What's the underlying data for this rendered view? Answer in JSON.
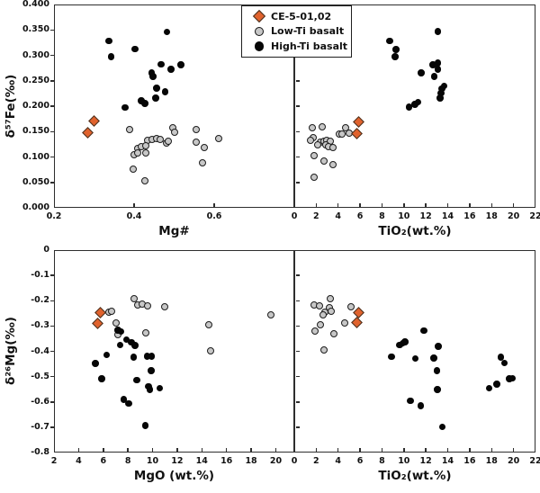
{
  "figure": {
    "legend": {
      "items": [
        {
          "key": "ce5",
          "label": "CE-5-01,02",
          "marker": "diamond"
        },
        {
          "key": "low_ti",
          "label": "Low-Ti basalt",
          "marker": "circle-gray"
        },
        {
          "key": "high_ti",
          "label": "High-Ti basalt",
          "marker": "circle-black"
        }
      ]
    },
    "colors": {
      "ce5_fill": "#e0622d",
      "ce5_stroke": "#45301f",
      "low_ti_fill": "#c7c7c7",
      "high_ti_fill": "#060606",
      "marker_outline": "#1c1c1c",
      "axis": "#2e2e2e",
      "background": "#ffffff"
    }
  },
  "chart_data": {
    "type": "scatter",
    "layout": "2x2 grid, shared y axis per row, legend top center",
    "panels": [
      {
        "id": "d57fe-vs-mgnum",
        "x": {
          "label": "Mg#",
          "min": 0.2,
          "max": 0.8,
          "ticks": [
            0.2,
            0.4,
            0.6
          ],
          "tick_labels": [
            "0.2",
            "0.4",
            "0.6"
          ]
        },
        "y": {
          "label": "δ⁵⁷Fe(‰)",
          "min": 0.0,
          "max": 0.4,
          "show_labels": true,
          "ticks": [
            0.0,
            0.05,
            0.1,
            0.15,
            0.2,
            0.25,
            0.3,
            0.35,
            0.4
          ],
          "tick_labels": [
            "0.000",
            "0.050",
            "0.100",
            "0.150",
            "0.200",
            "0.250",
            "0.300",
            "0.350",
            "0.400"
          ]
        },
        "series": {
          "ce5": [
            [
              0.297,
              0.172
            ],
            [
              0.282,
              0.149
            ]
          ],
          "low_ti": [
            [
              0.386,
              0.155
            ],
            [
              0.495,
              0.16
            ],
            [
              0.498,
              0.15
            ],
            [
              0.553,
              0.156
            ],
            [
              0.61,
              0.138
            ],
            [
              0.431,
              0.135
            ],
            [
              0.442,
              0.137
            ],
            [
              0.454,
              0.138
            ],
            [
              0.463,
              0.136
            ],
            [
              0.478,
              0.13
            ],
            [
              0.484,
              0.132
            ],
            [
              0.553,
              0.131
            ],
            [
              0.407,
              0.119
            ],
            [
              0.415,
              0.122
            ],
            [
              0.426,
              0.124
            ],
            [
              0.398,
              0.106
            ],
            [
              0.407,
              0.109
            ],
            [
              0.426,
              0.11
            ],
            [
              0.573,
              0.12
            ],
            [
              0.568,
              0.091
            ],
            [
              0.395,
              0.078
            ],
            [
              0.424,
              0.055
            ]
          ],
          "high_ti": [
            [
              0.48,
              0.348
            ],
            [
              0.335,
              0.33
            ],
            [
              0.4,
              0.314
            ],
            [
              0.34,
              0.299
            ],
            [
              0.465,
              0.284
            ],
            [
              0.515,
              0.283
            ],
            [
              0.49,
              0.274
            ],
            [
              0.442,
              0.267
            ],
            [
              0.445,
              0.26
            ],
            [
              0.454,
              0.237
            ],
            [
              0.475,
              0.23
            ],
            [
              0.452,
              0.218
            ],
            [
              0.416,
              0.212
            ],
            [
              0.425,
              0.207
            ],
            [
              0.375,
              0.199
            ]
          ]
        }
      },
      {
        "id": "d57fe-vs-tio2",
        "x": {
          "label": "TiO₂(wt.%)",
          "min": 0,
          "max": 22,
          "ticks": [
            0,
            2,
            4,
            6,
            8,
            10,
            12,
            14,
            16,
            18,
            20,
            22
          ],
          "tick_labels": [
            "0",
            "2",
            "4",
            "6",
            "8",
            "10",
            "12",
            "14",
            "16",
            "18",
            "20",
            "22"
          ]
        },
        "y": {
          "label": "",
          "min": 0.0,
          "max": 0.4,
          "show_labels": false,
          "ticks": [
            0.0,
            0.05,
            0.1,
            0.15,
            0.2,
            0.25,
            0.3,
            0.35,
            0.4
          ],
          "tick_labels": []
        },
        "series": {
          "ce5": [
            [
              5.8,
              0.171
            ],
            [
              5.6,
              0.148
            ]
          ],
          "low_ti": [
            [
              1.54,
              0.159
            ],
            [
              2.5,
              0.161
            ],
            [
              4.6,
              0.159
            ],
            [
              4.93,
              0.148
            ],
            [
              4.0,
              0.147
            ],
            [
              4.27,
              0.147
            ],
            [
              1.64,
              0.139
            ],
            [
              1.37,
              0.135
            ],
            [
              2.28,
              0.131
            ],
            [
              2.63,
              0.133
            ],
            [
              2.91,
              0.134
            ],
            [
              3.18,
              0.133
            ],
            [
              2.09,
              0.125
            ],
            [
              2.83,
              0.125
            ],
            [
              3.02,
              0.123
            ],
            [
              3.45,
              0.121
            ],
            [
              1.73,
              0.104
            ],
            [
              2.63,
              0.094
            ],
            [
              3.45,
              0.086
            ],
            [
              1.73,
              0.062
            ]
          ],
          "high_ti": [
            [
              13.0,
              0.349
            ],
            [
              8.6,
              0.33
            ],
            [
              9.2,
              0.313
            ],
            [
              9.1,
              0.299
            ],
            [
              13.0,
              0.287
            ],
            [
              12.55,
              0.283
            ],
            [
              13.0,
              0.274
            ],
            [
              11.5,
              0.267
            ],
            [
              12.7,
              0.26
            ],
            [
              13.6,
              0.242
            ],
            [
              13.4,
              0.236
            ],
            [
              13.3,
              0.227
            ],
            [
              13.2,
              0.218
            ],
            [
              11.2,
              0.21
            ],
            [
              10.9,
              0.205
            ],
            [
              10.4,
              0.2
            ]
          ]
        }
      },
      {
        "id": "d26mg-vs-mgo",
        "x": {
          "label": "MgO (wt.%)",
          "min": 2,
          "max": 21.5,
          "ticks": [
            2,
            4,
            6,
            8,
            10,
            12,
            14,
            16,
            18,
            20
          ],
          "tick_labels": [
            "2",
            "4",
            "6",
            "8",
            "10",
            "12",
            "14",
            "16",
            "18",
            "20"
          ]
        },
        "y": {
          "label": "δ²⁶Mg(‰)",
          "min": -0.8,
          "max": 0.0,
          "show_labels": true,
          "ticks": [
            0.0,
            -0.1,
            -0.2,
            -0.3,
            -0.4,
            -0.5,
            -0.6,
            -0.7,
            -0.8
          ],
          "tick_labels": [
            "0",
            "-0.1",
            "-0.2",
            "-0.3",
            "-0.4",
            "-0.5",
            "-0.6",
            "-0.7",
            "-0.8"
          ]
        },
        "series": {
          "ce5": [
            [
              5.7,
              -0.244
            ],
            [
              5.5,
              -0.285
            ]
          ],
          "low_ti": [
            [
              8.4,
              -0.19
            ],
            [
              8.75,
              -0.214
            ],
            [
              9.1,
              -0.208
            ],
            [
              9.5,
              -0.216
            ],
            [
              10.9,
              -0.221
            ],
            [
              6.35,
              -0.241
            ],
            [
              6.6,
              -0.238
            ],
            [
              6.97,
              -0.283
            ],
            [
              7.1,
              -0.33
            ],
            [
              9.35,
              -0.322
            ],
            [
              14.5,
              -0.291
            ],
            [
              14.6,
              -0.396
            ],
            [
              19.5,
              -0.253
            ]
          ],
          "high_ti": [
            [
              7.1,
              -0.312
            ],
            [
              7.35,
              -0.319
            ],
            [
              7.8,
              -0.351
            ],
            [
              7.3,
              -0.372
            ],
            [
              8.2,
              -0.36
            ],
            [
              8.5,
              -0.374
            ],
            [
              8.4,
              -0.42
            ],
            [
              6.2,
              -0.41
            ],
            [
              5.3,
              -0.444
            ],
            [
              5.8,
              -0.505
            ],
            [
              9.5,
              -0.416
            ],
            [
              9.85,
              -0.416
            ],
            [
              9.8,
              -0.472
            ],
            [
              8.65,
              -0.511
            ],
            [
              9.6,
              -0.535
            ],
            [
              9.7,
              -0.547
            ],
            [
              10.5,
              -0.543
            ],
            [
              7.6,
              -0.586
            ],
            [
              8.0,
              -0.602
            ],
            [
              9.35,
              -0.689
            ]
          ]
        }
      },
      {
        "id": "d26mg-vs-tio2",
        "x": {
          "label": "TiO₂(wt.%)",
          "min": 0,
          "max": 22,
          "ticks": [
            0,
            2,
            4,
            6,
            8,
            10,
            12,
            14,
            16,
            18,
            20,
            22
          ],
          "tick_labels": [
            "0",
            "2",
            "4",
            "6",
            "8",
            "10",
            "12",
            "14",
            "16",
            "18",
            "20",
            "22"
          ]
        },
        "y": {
          "label": "",
          "min": -0.8,
          "max": 0.0,
          "show_labels": false,
          "ticks": [
            0.0,
            -0.1,
            -0.2,
            -0.3,
            -0.4,
            -0.5,
            -0.6,
            -0.7,
            -0.8
          ],
          "tick_labels": []
        },
        "series": {
          "ce5": [
            [
              5.8,
              -0.244
            ],
            [
              5.65,
              -0.283
            ]
          ],
          "low_ti": [
            [
              3.24,
              -0.19
            ],
            [
              1.73,
              -0.214
            ],
            [
              2.19,
              -0.218
            ],
            [
              3.1,
              -0.225
            ],
            [
              2.74,
              -0.241
            ],
            [
              3.32,
              -0.237
            ],
            [
              2.55,
              -0.253
            ],
            [
              2.28,
              -0.291
            ],
            [
              1.84,
              -0.316
            ],
            [
              3.51,
              -0.328
            ],
            [
              5.1,
              -0.221
            ],
            [
              4.55,
              -0.283
            ],
            [
              2.63,
              -0.391
            ]
          ],
          "high_ti": [
            [
              11.73,
              -0.314
            ],
            [
              9.54,
              -0.372
            ],
            [
              9.81,
              -0.365
            ],
            [
              10.03,
              -0.359
            ],
            [
              8.8,
              -0.418
            ],
            [
              10.97,
              -0.425
            ],
            [
              12.63,
              -0.423
            ],
            [
              13.05,
              -0.377
            ],
            [
              12.91,
              -0.472
            ],
            [
              12.99,
              -0.548
            ],
            [
              10.52,
              -0.592
            ],
            [
              11.46,
              -0.612
            ],
            [
              13.43,
              -0.695
            ],
            [
              18.74,
              -0.42
            ],
            [
              19.07,
              -0.442
            ],
            [
              19.54,
              -0.505
            ],
            [
              19.84,
              -0.503
            ],
            [
              17.71,
              -0.543
            ],
            [
              18.39,
              -0.527
            ]
          ]
        }
      }
    ]
  }
}
